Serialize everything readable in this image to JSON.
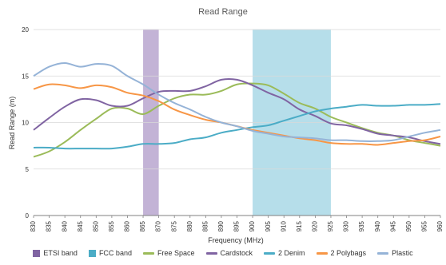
{
  "chart_data": {
    "type": "line",
    "title": "Read Range",
    "xlabel": "Frequency (MHz)",
    "ylabel": "Read Range (m)",
    "xlim": [
      830,
      960
    ],
    "ylim": [
      0,
      20
    ],
    "xticks": [
      830,
      835,
      840,
      845,
      850,
      855,
      860,
      865,
      870,
      875,
      880,
      885,
      890,
      895,
      900,
      905,
      910,
      915,
      920,
      925,
      930,
      935,
      940,
      945,
      950,
      955,
      960
    ],
    "yticks": [
      0,
      5,
      10,
      15,
      20
    ],
    "grid": "horizontal",
    "legend_position": "bottom",
    "bands": [
      {
        "name": "ETSI band",
        "x_start": 865,
        "x_end": 870,
        "color": "#b8a6cf",
        "legend_color": "#8064a2"
      },
      {
        "name": "FCC  band",
        "x_start": 900,
        "x_end": 925,
        "color": "#a9d8e6",
        "legend_color": "#4bacc6"
      }
    ],
    "series": [
      {
        "name": "Free Space",
        "color": "#9bbb59",
        "x": [
          830,
          835,
          840,
          845,
          850,
          855,
          860,
          865,
          870,
          875,
          880,
          885,
          890,
          895,
          900,
          905,
          910,
          915,
          920,
          925,
          930,
          935,
          940,
          945,
          950,
          955,
          960
        ],
        "y": [
          6.3,
          6.9,
          7.9,
          9.2,
          10.4,
          11.5,
          11.5,
          10.9,
          11.8,
          12.6,
          13.0,
          13.0,
          13.4,
          14.1,
          14.2,
          14.0,
          13.1,
          12.1,
          11.5,
          10.6,
          10.0,
          9.4,
          8.9,
          8.6,
          8.1,
          7.8,
          7.5
        ]
      },
      {
        "name": "Cardstock",
        "color": "#8064a2",
        "x": [
          830,
          835,
          840,
          845,
          850,
          855,
          860,
          865,
          870,
          875,
          880,
          885,
          890,
          895,
          900,
          905,
          910,
          915,
          920,
          925,
          930,
          935,
          940,
          945,
          950,
          955,
          960
        ],
        "y": [
          9.2,
          10.5,
          11.7,
          12.5,
          12.4,
          11.8,
          11.8,
          12.6,
          13.3,
          13.4,
          13.4,
          13.9,
          14.6,
          14.6,
          14.0,
          13.2,
          12.5,
          11.4,
          10.7,
          9.9,
          9.7,
          9.3,
          8.8,
          8.6,
          8.4,
          8.0,
          7.7
        ]
      },
      {
        "name": "2 Denim",
        "color": "#4bacc6",
        "x": [
          830,
          835,
          840,
          845,
          850,
          855,
          860,
          865,
          870,
          875,
          880,
          885,
          890,
          895,
          900,
          905,
          910,
          915,
          920,
          925,
          930,
          935,
          940,
          945,
          950,
          955,
          960
        ],
        "y": [
          7.3,
          7.3,
          7.2,
          7.2,
          7.2,
          7.2,
          7.4,
          7.7,
          7.7,
          7.8,
          8.2,
          8.4,
          8.9,
          9.2,
          9.5,
          9.7,
          10.2,
          10.7,
          11.2,
          11.5,
          11.7,
          11.9,
          11.8,
          11.8,
          11.9,
          11.9,
          12.0
        ]
      },
      {
        "name": "2 Polybags",
        "color": "#f79646",
        "x": [
          830,
          835,
          840,
          845,
          850,
          855,
          860,
          865,
          870,
          875,
          880,
          885,
          890,
          895,
          900,
          905,
          910,
          915,
          920,
          925,
          930,
          935,
          940,
          945,
          950,
          955,
          960
        ],
        "y": [
          13.6,
          14.1,
          14.0,
          13.7,
          14.0,
          13.8,
          13.2,
          12.9,
          12.3,
          11.4,
          10.8,
          10.3,
          10.0,
          9.6,
          9.2,
          8.9,
          8.6,
          8.3,
          8.1,
          7.8,
          7.7,
          7.7,
          7.6,
          7.8,
          8.0,
          8.1,
          8.5
        ]
      },
      {
        "name": "Plastic",
        "color": "#95b3d7",
        "x": [
          830,
          835,
          840,
          845,
          850,
          855,
          860,
          865,
          870,
          875,
          880,
          885,
          890,
          895,
          900,
          905,
          910,
          915,
          920,
          925,
          930,
          935,
          940,
          945,
          950,
          955,
          960
        ],
        "y": [
          15.0,
          16.0,
          16.4,
          16.0,
          16.3,
          16.1,
          15.0,
          14.1,
          13.0,
          12.1,
          11.4,
          10.6,
          10.0,
          9.6,
          9.1,
          8.8,
          8.5,
          8.4,
          8.3,
          8.1,
          8.1,
          8.0,
          8.0,
          8.1,
          8.5,
          8.9,
          9.2
        ]
      }
    ]
  }
}
